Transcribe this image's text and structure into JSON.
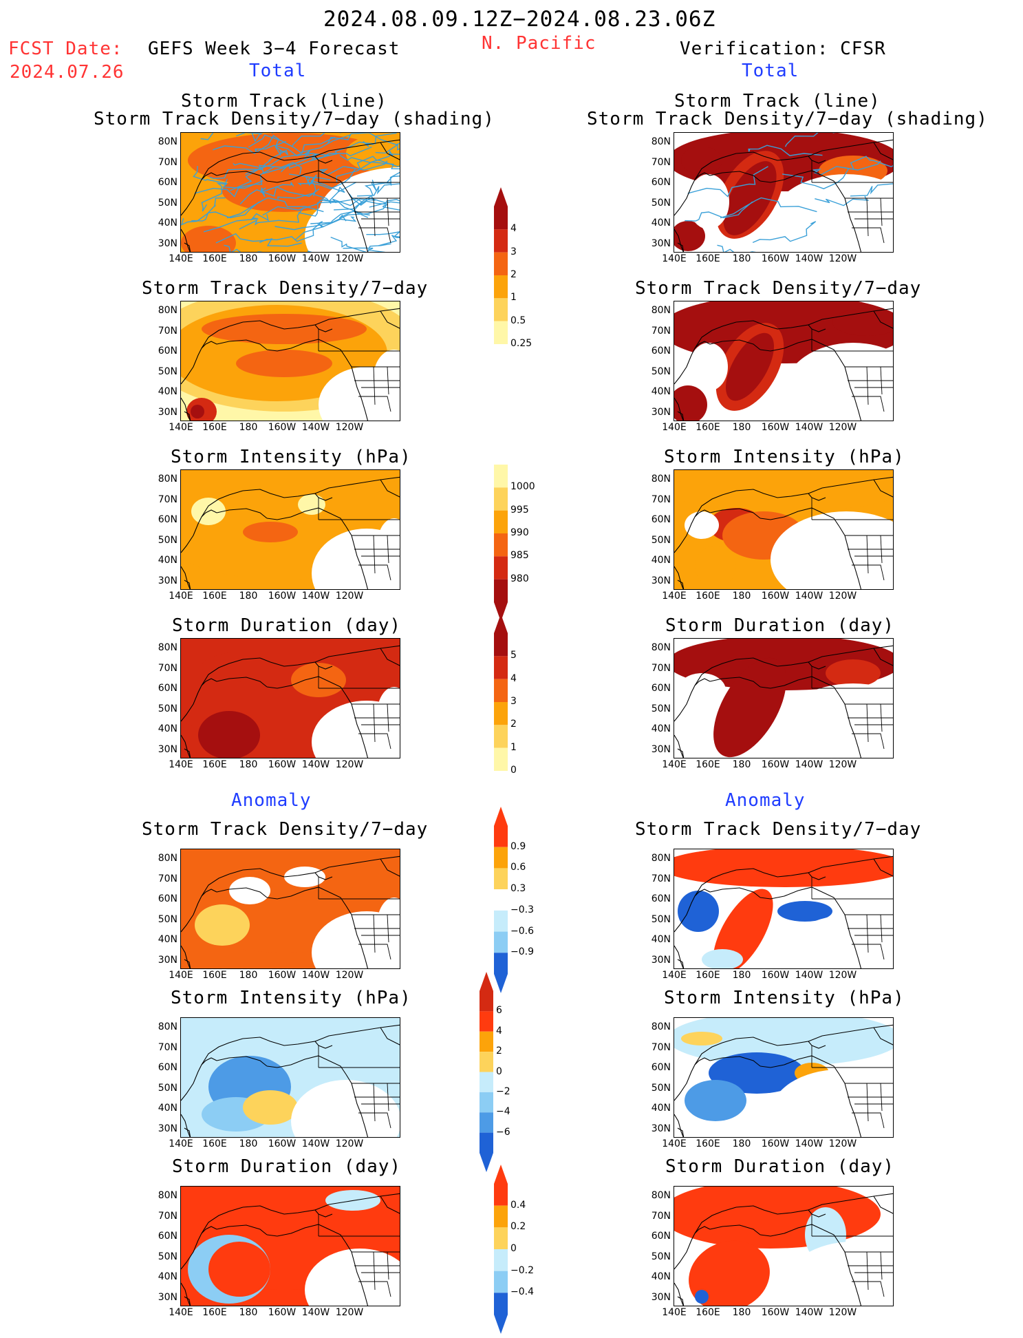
{
  "header": {
    "date_range": "2024.08.09.12Z−2024.08.23.06Z",
    "fcst_label": "FCST Date:",
    "fcst_date": "2024.07.26",
    "left_title": "GEFS Week 3−4 Forecast",
    "center_title": "N. Pacific",
    "right_title": "Verification: CFSR",
    "left_sub": "Total",
    "right_sub": "Total",
    "left_anomaly": "Anomaly",
    "right_anomaly": "Anomaly"
  },
  "axes": {
    "lat_labels": [
      "80N",
      "70N",
      "60N",
      "50N",
      "40N",
      "30N"
    ],
    "lon_labels": [
      "140E",
      "160E",
      "180",
      "160W",
      "140W",
      "120W"
    ]
  },
  "panels": {
    "track_title_1": "Storm Track (line)",
    "track_title_2": "Storm Track Density/7−day (shading)",
    "density": "Storm Track Density/7−day",
    "intensity": "Storm Intensity (hPa)",
    "duration": "Storm Duration (day)"
  },
  "colorbars": {
    "density": [
      "4",
      "3",
      "2",
      "1",
      "0.5",
      "0.25"
    ],
    "intensity": [
      "1000",
      "995",
      "990",
      "985",
      "980"
    ],
    "duration": [
      "5",
      "4",
      "3",
      "2",
      "1",
      "0"
    ],
    "density_anom": [
      "0.9",
      "0.6",
      "0.3",
      "−0.3",
      "−0.6",
      "−0.9"
    ],
    "intensity_anom": [
      "6",
      "4",
      "2",
      "0",
      "−2",
      "−4",
      "−6"
    ],
    "duration_anom": [
      "0.4",
      "0.2",
      "0",
      "−0.2",
      "−0.4"
    ]
  },
  "colors": {
    "warm": [
      "#fff7a8",
      "#fdd35b",
      "#fca30a",
      "#f46512",
      "#d42a12",
      "#a50f0f"
    ],
    "cool": [
      "#c6ecfb",
      "#8ccdf4",
      "#4d9be6",
      "#1f62d6"
    ],
    "anom_red": "#ff3b0f",
    "track_line": "#3aa0d8"
  }
}
